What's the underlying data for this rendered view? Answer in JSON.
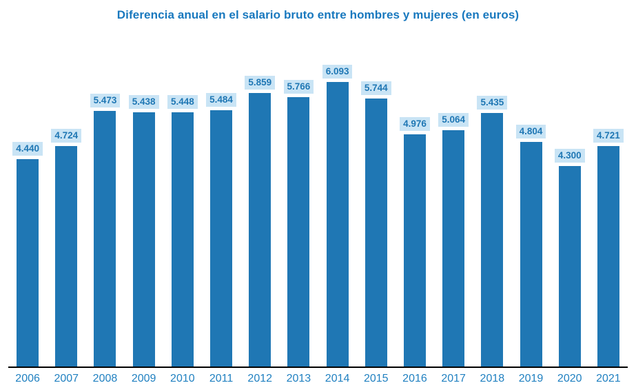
{
  "title": "Diferencia anual en el salario bruto entre hombres y mujeres (en euros)",
  "colors": {
    "bar": "#1f77b4",
    "title_text": "#1878be",
    "value_label_bg": "#c9e4f5",
    "value_label_text": "#1f77b4",
    "year_label_text": "#2181c1",
    "axis_line": "#000000",
    "background": "#ffffff"
  },
  "chart_data": {
    "type": "bar",
    "title": "Diferencia anual en el salario bruto entre hombres y mujeres (en euros)",
    "categories": [
      "2006",
      "2007",
      "2008",
      "2009",
      "2010",
      "2011",
      "2012",
      "2013",
      "2014",
      "2015",
      "2016",
      "2017",
      "2018",
      "2019",
      "2020",
      "2021"
    ],
    "values": [
      4440,
      4724,
      5473,
      5438,
      5448,
      5484,
      5859,
      5766,
      6093,
      5744,
      4976,
      5064,
      5435,
      4804,
      4300,
      4721
    ],
    "value_labels": [
      "4.440",
      "4.724",
      "5.473",
      "5.438",
      "5.448",
      "5.484",
      "5.859",
      "5.766",
      "6.093",
      "5.744",
      "4.976",
      "5.064",
      "5.435",
      "4.804",
      "4.300",
      "4.721"
    ],
    "xlabel": "",
    "ylabel": "",
    "ylim": [
      0,
      6093
    ],
    "grid": false,
    "legend": false,
    "value_labels_visible": true,
    "y_axis_visible": false
  }
}
